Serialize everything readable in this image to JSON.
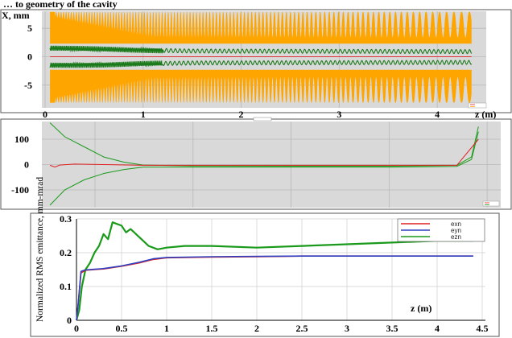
{
  "window_title": "… to geometry of the cavity",
  "colors": {
    "envelope": "#ffa500",
    "green_dark": "#1a7a1a",
    "green": "#1a9a1a",
    "red": "#e02020",
    "blue": "#3040c0",
    "grid": "#b8b8b8",
    "panel_bg": "#d9d9d9"
  },
  "chart_data": [
    {
      "type": "area",
      "panel": "beam envelope",
      "ylabel": "X, mm",
      "xlabel": "z (m)",
      "xlim": [
        0,
        4.5
      ],
      "ylim": [
        -9,
        8
      ],
      "x_ticks": [
        "0",
        "1",
        "2",
        "3",
        "4"
      ],
      "y_ticks": [
        "5",
        "0",
        "-5"
      ],
      "series": [
        {
          "color": "orange",
          "description_of_shape": "outer envelope near ±6.5 mm, modulated by periodic notches that deepen with z",
          "x": [
            0.05,
            4.35
          ],
          "y_top": [
            6.5,
            6.5
          ],
          "y_bottom": [
            -6.5,
            -6.5
          ]
        },
        {
          "color": "green",
          "x": [
            0.05,
            0.6,
            1.5,
            4.35
          ],
          "y": [
            1.5,
            1.3,
            1.0,
            0.9
          ]
        },
        {
          "color": "green",
          "x": [
            0.05,
            0.6,
            1.5,
            4.35
          ],
          "y": [
            -1.5,
            -1.4,
            -1.1,
            -1.0
          ]
        },
        {
          "color": "red",
          "x": [
            0.05,
            4.35
          ],
          "y": [
            0,
            0
          ]
        }
      ],
      "legend": "bottom-right"
    },
    {
      "type": "line",
      "panel": "phase",
      "xlim": [
        0,
        4.5
      ],
      "ylim": [
        -170,
        170
      ],
      "y_ticks": [
        "100",
        "0",
        "-100"
      ],
      "series": [
        {
          "color": "green",
          "x": [
            0.05,
            0.2,
            0.4,
            0.6,
            0.8,
            1.0,
            1.5,
            2.5,
            3.5,
            4.2,
            4.35,
            4.42
          ],
          "y": [
            165,
            110,
            70,
            30,
            10,
            -2,
            -5,
            -6,
            -6,
            -3,
            30,
            150
          ]
        },
        {
          "color": "green",
          "x": [
            0.05,
            0.2,
            0.4,
            0.6,
            0.8,
            1.0,
            1.5,
            2.5,
            3.5,
            4.2,
            4.35,
            4.42
          ],
          "y": [
            -160,
            -100,
            -60,
            -35,
            -20,
            -10,
            -10,
            -10,
            -10,
            -7,
            20,
            130
          ]
        },
        {
          "color": "red",
          "x": [
            0.05,
            0.1,
            0.15,
            0.3,
            0.6,
            1.0,
            2.0,
            3.0,
            4.2,
            4.42
          ],
          "y": [
            -3,
            -10,
            -2,
            2,
            0,
            -3,
            -3,
            -3,
            -3,
            100
          ]
        }
      ],
      "legend": "bottom-right"
    },
    {
      "type": "line",
      "panel": "emittance",
      "ylabel": "Normalized RMS emittance, mm-mrad",
      "xlabel": "z (m)",
      "xlim": [
        0,
        4.5
      ],
      "ylim": [
        0,
        0.3
      ],
      "x_ticks": [
        "0",
        "0.5",
        "1",
        "1.5",
        "2",
        "2.5",
        "3",
        "3.5",
        "4",
        "4.5"
      ],
      "y_ticks": [
        "0",
        "0.1",
        "0.2",
        "0.3"
      ],
      "series": [
        {
          "name": "exn",
          "color": "red",
          "x": [
            0,
            0.02,
            0.05,
            0.1,
            0.2,
            0.3,
            0.5,
            0.7,
            0.85,
            1.0,
            1.5,
            2.0,
            2.5,
            3.0,
            3.5,
            4.0,
            4.4
          ],
          "y": [
            0.0,
            0.05,
            0.14,
            0.148,
            0.15,
            0.152,
            0.16,
            0.17,
            0.18,
            0.185,
            0.187,
            0.188,
            0.19,
            0.19,
            0.19,
            0.19,
            0.19
          ]
        },
        {
          "name": "eyn",
          "color": "blue",
          "x": [
            0,
            0.02,
            0.05,
            0.1,
            0.2,
            0.3,
            0.5,
            0.7,
            0.85,
            1.0,
            1.5,
            2.0,
            2.5,
            3.0,
            3.5,
            4.0,
            4.4
          ],
          "y": [
            0.0,
            0.05,
            0.145,
            0.149,
            0.151,
            0.153,
            0.161,
            0.172,
            0.182,
            0.186,
            0.188,
            0.189,
            0.19,
            0.19,
            0.19,
            0.19,
            0.19
          ]
        },
        {
          "name": "ezn",
          "color": "green",
          "x": [
            0,
            0.03,
            0.06,
            0.1,
            0.15,
            0.2,
            0.25,
            0.3,
            0.35,
            0.4,
            0.45,
            0.5,
            0.55,
            0.6,
            0.7,
            0.8,
            0.9,
            1.0,
            1.2,
            1.5,
            2.0,
            2.5,
            3.0,
            3.5,
            4.0,
            4.4
          ],
          "y": [
            0.0,
            0.03,
            0.1,
            0.15,
            0.17,
            0.2,
            0.22,
            0.255,
            0.24,
            0.29,
            0.285,
            0.28,
            0.26,
            0.27,
            0.245,
            0.22,
            0.21,
            0.215,
            0.22,
            0.22,
            0.215,
            0.22,
            0.225,
            0.23,
            0.235,
            0.235
          ]
        }
      ],
      "legend": "top-right",
      "grid": true
    }
  ]
}
